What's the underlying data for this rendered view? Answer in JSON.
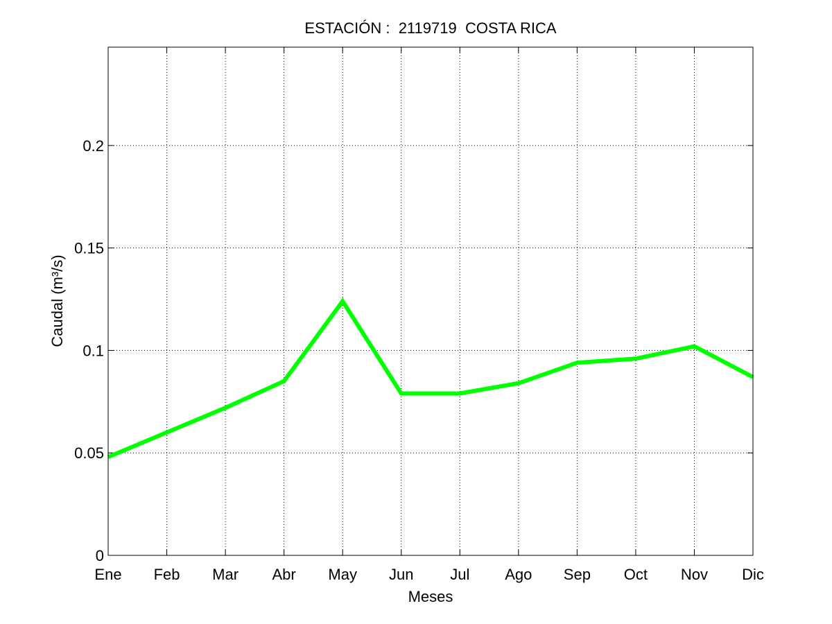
{
  "chart_data": {
    "type": "line",
    "title": "ESTACIÓN :  2119719  COSTA RICA",
    "xlabel": "Meses",
    "ylabel": "Caudal (m³/s)",
    "categories": [
      "Ene",
      "Feb",
      "Mar",
      "Abr",
      "May",
      "Jun",
      "Jul",
      "Ago",
      "Sep",
      "Oct",
      "Nov",
      "Dic"
    ],
    "series": [
      {
        "name": "",
        "values": [
          0.048,
          0.06,
          0.072,
          0.085,
          0.124,
          0.079,
          0.079,
          0.084,
          0.094,
          0.096,
          0.102,
          0.087
        ],
        "color": "#00ff00"
      }
    ],
    "ylim": [
      0,
      0.248
    ],
    "yticks": [
      0,
      0.05,
      0.1,
      0.15,
      0.2
    ],
    "ytick_labels": [
      "0",
      "0.05",
      "0.1",
      "0.15",
      "0.2"
    ],
    "grid": true,
    "grid_style": "dotted",
    "legend": "none",
    "colors": {
      "line": "#00ff00",
      "axes": "#000000",
      "grid": "#000000",
      "background": "#ffffff"
    }
  }
}
